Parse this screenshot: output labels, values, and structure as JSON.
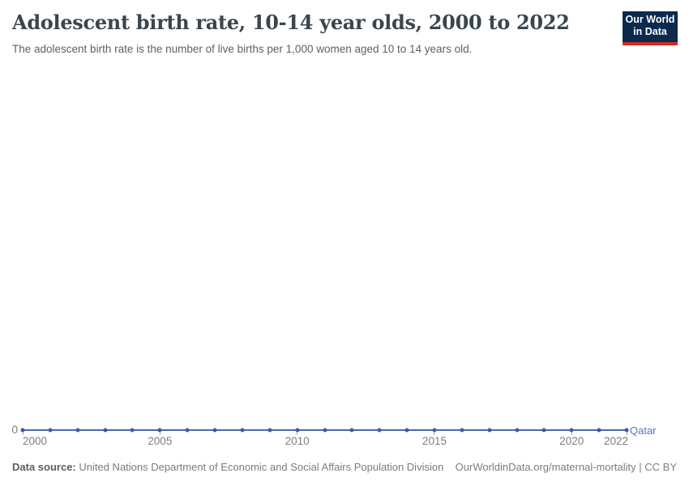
{
  "header": {
    "title": "Adolescent birth rate, 10-14 year olds, 2000 to 2022",
    "subtitle": "The adolescent birth rate is the number of live births per 1,000 women aged 10 to 14 years old.",
    "logo": {
      "line1": "Our World",
      "line2": "in Data",
      "bg_color": "#0b2a4e",
      "accent_color": "#d42b21"
    }
  },
  "chart_data": {
    "type": "line",
    "title": "Adolescent birth rate, 10-14 year olds, 2000 to 2022",
    "subtitle": "The adolescent birth rate is the number of live births per 1,000 women aged 10 to 14 years old.",
    "x": [
      2000,
      2001,
      2002,
      2003,
      2004,
      2005,
      2006,
      2007,
      2008,
      2009,
      2010,
      2011,
      2012,
      2013,
      2014,
      2015,
      2016,
      2017,
      2018,
      2019,
      2020,
      2021,
      2022
    ],
    "series": [
      {
        "name": "Qatar",
        "values": [
          0,
          0,
          0,
          0,
          0,
          0,
          0,
          0,
          0,
          0,
          0,
          0,
          0,
          0,
          0,
          0,
          0,
          0,
          0,
          0,
          0,
          0,
          0
        ],
        "line_color": "#4a68b0",
        "marker_color": "#3d5a9e",
        "label_color": "#5b74bb"
      }
    ],
    "x_ticks": [
      2000,
      2005,
      2010,
      2015,
      2020,
      2022
    ],
    "x_range": [
      2000,
      2022
    ],
    "y_tick_label": "0",
    "grid": false,
    "legend_position": "end-of-line"
  },
  "footer": {
    "datasource_label": "Data source:",
    "datasource_value": " United Nations Department of Economic and Social Affairs Population Division",
    "link": "OurWorldinData.org/maternal-mortality | CC BY"
  }
}
